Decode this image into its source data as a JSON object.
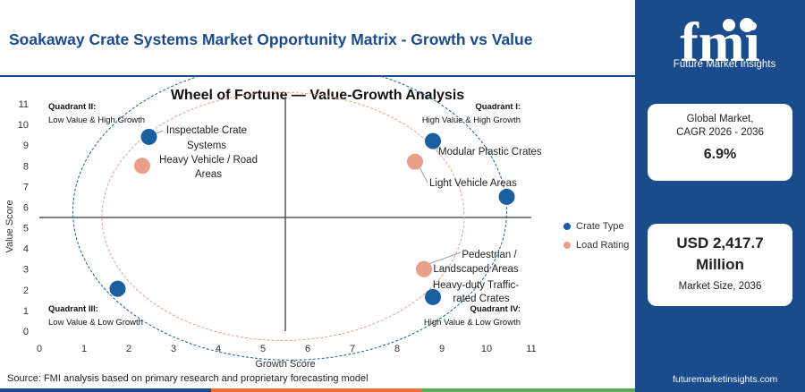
{
  "header": {
    "title": "Soakaway Crate Systems Market Opportunity Matrix - Growth vs Value"
  },
  "brand": {
    "logo_word": "fmi",
    "tagline": "Future Market Insights",
    "url": "futuremarketinsights.com"
  },
  "stats": {
    "cagr_label": "Global Market,\nCAGR 2026 - 2036",
    "cagr_label_line1": "Global Market,",
    "cagr_label_line2": "CAGR 2026 - 2036",
    "cagr_value": "6.9%",
    "size_value_line1": "USD 2,417.7",
    "size_value_line2": "Million",
    "size_label": "Market Size, 2036"
  },
  "footer": {
    "source": "Source: FMI analysis based on primary research and proprietary forecasting model"
  },
  "colors": {
    "brand_blue": "#1a4b8c",
    "crate_type": "#1a5fa0",
    "load_rating": "#e8a08a",
    "bar_orange": "#e8703a",
    "bar_green": "#5aa85a"
  },
  "chart_data": {
    "type": "scatter",
    "title": "Wheel of Fortune — Value-Growth Analysis",
    "xlabel": "Growth Score",
    "ylabel": "Value Score",
    "xlim": [
      0,
      11
    ],
    "ylim": [
      0,
      11
    ],
    "x_ticks": [
      0,
      1,
      2,
      3,
      4,
      5,
      6,
      7,
      8,
      9,
      10,
      11
    ],
    "y_ticks": [
      0,
      1,
      2,
      3,
      4,
      5,
      6,
      7,
      8,
      9,
      10,
      11
    ],
    "divider_x": 5.5,
    "divider_y": 5.5,
    "legend_position": "right",
    "quadrants": [
      {
        "name": "Quadrant II:",
        "desc": "Low Value & High Growth",
        "corner": "top-left"
      },
      {
        "name": "Quadrant I:",
        "desc": "High Value & High Growth",
        "corner": "top-right"
      },
      {
        "name": "Quadrant III:",
        "desc": "Low Value & Low Growth",
        "corner": "bottom-left"
      },
      {
        "name": "Quadrant IV:",
        "desc": "High Value & Low Growth",
        "corner": "bottom-right"
      }
    ],
    "series": [
      {
        "name": "Crate Type",
        "color": "#1a5fa0",
        "points": [
          {
            "label": "Inspectable Crate Systems",
            "x": 2.45,
            "y": 9.4
          },
          {
            "label": "Modular Plastic Crates",
            "x": 8.8,
            "y": 9.2
          },
          {
            "label": "",
            "x": 10.45,
            "y": 6.5
          },
          {
            "label": "",
            "x": 1.75,
            "y": 2.05
          },
          {
            "label": "",
            "x": 8.8,
            "y": 1.65
          }
        ]
      },
      {
        "name": "Load Rating",
        "color": "#e8a08a",
        "points": [
          {
            "label": "Heavy Vehicle / Road Areas",
            "x": 2.3,
            "y": 8.0
          },
          {
            "label": "Light Vehicle Areas",
            "x": 8.4,
            "y": 8.2
          },
          {
            "label": "Pedestrian / Landscaped Areas",
            "x": 8.6,
            "y": 3.0
          },
          {
            "label": "Heavy-duty Trafficrated Crates",
            "x": 8.6,
            "y": 3.0
          }
        ]
      }
    ],
    "annotations": [
      "Inspectable Crate",
      "Systems",
      "Heavy Vehicle / Road",
      "Areas",
      "Modular Plastic Crates",
      "Light Vehicle Areas",
      "Pedestrian /",
      "Landscaped Areas",
      "Heavy-duty Traffic-",
      "rated Crates"
    ]
  }
}
